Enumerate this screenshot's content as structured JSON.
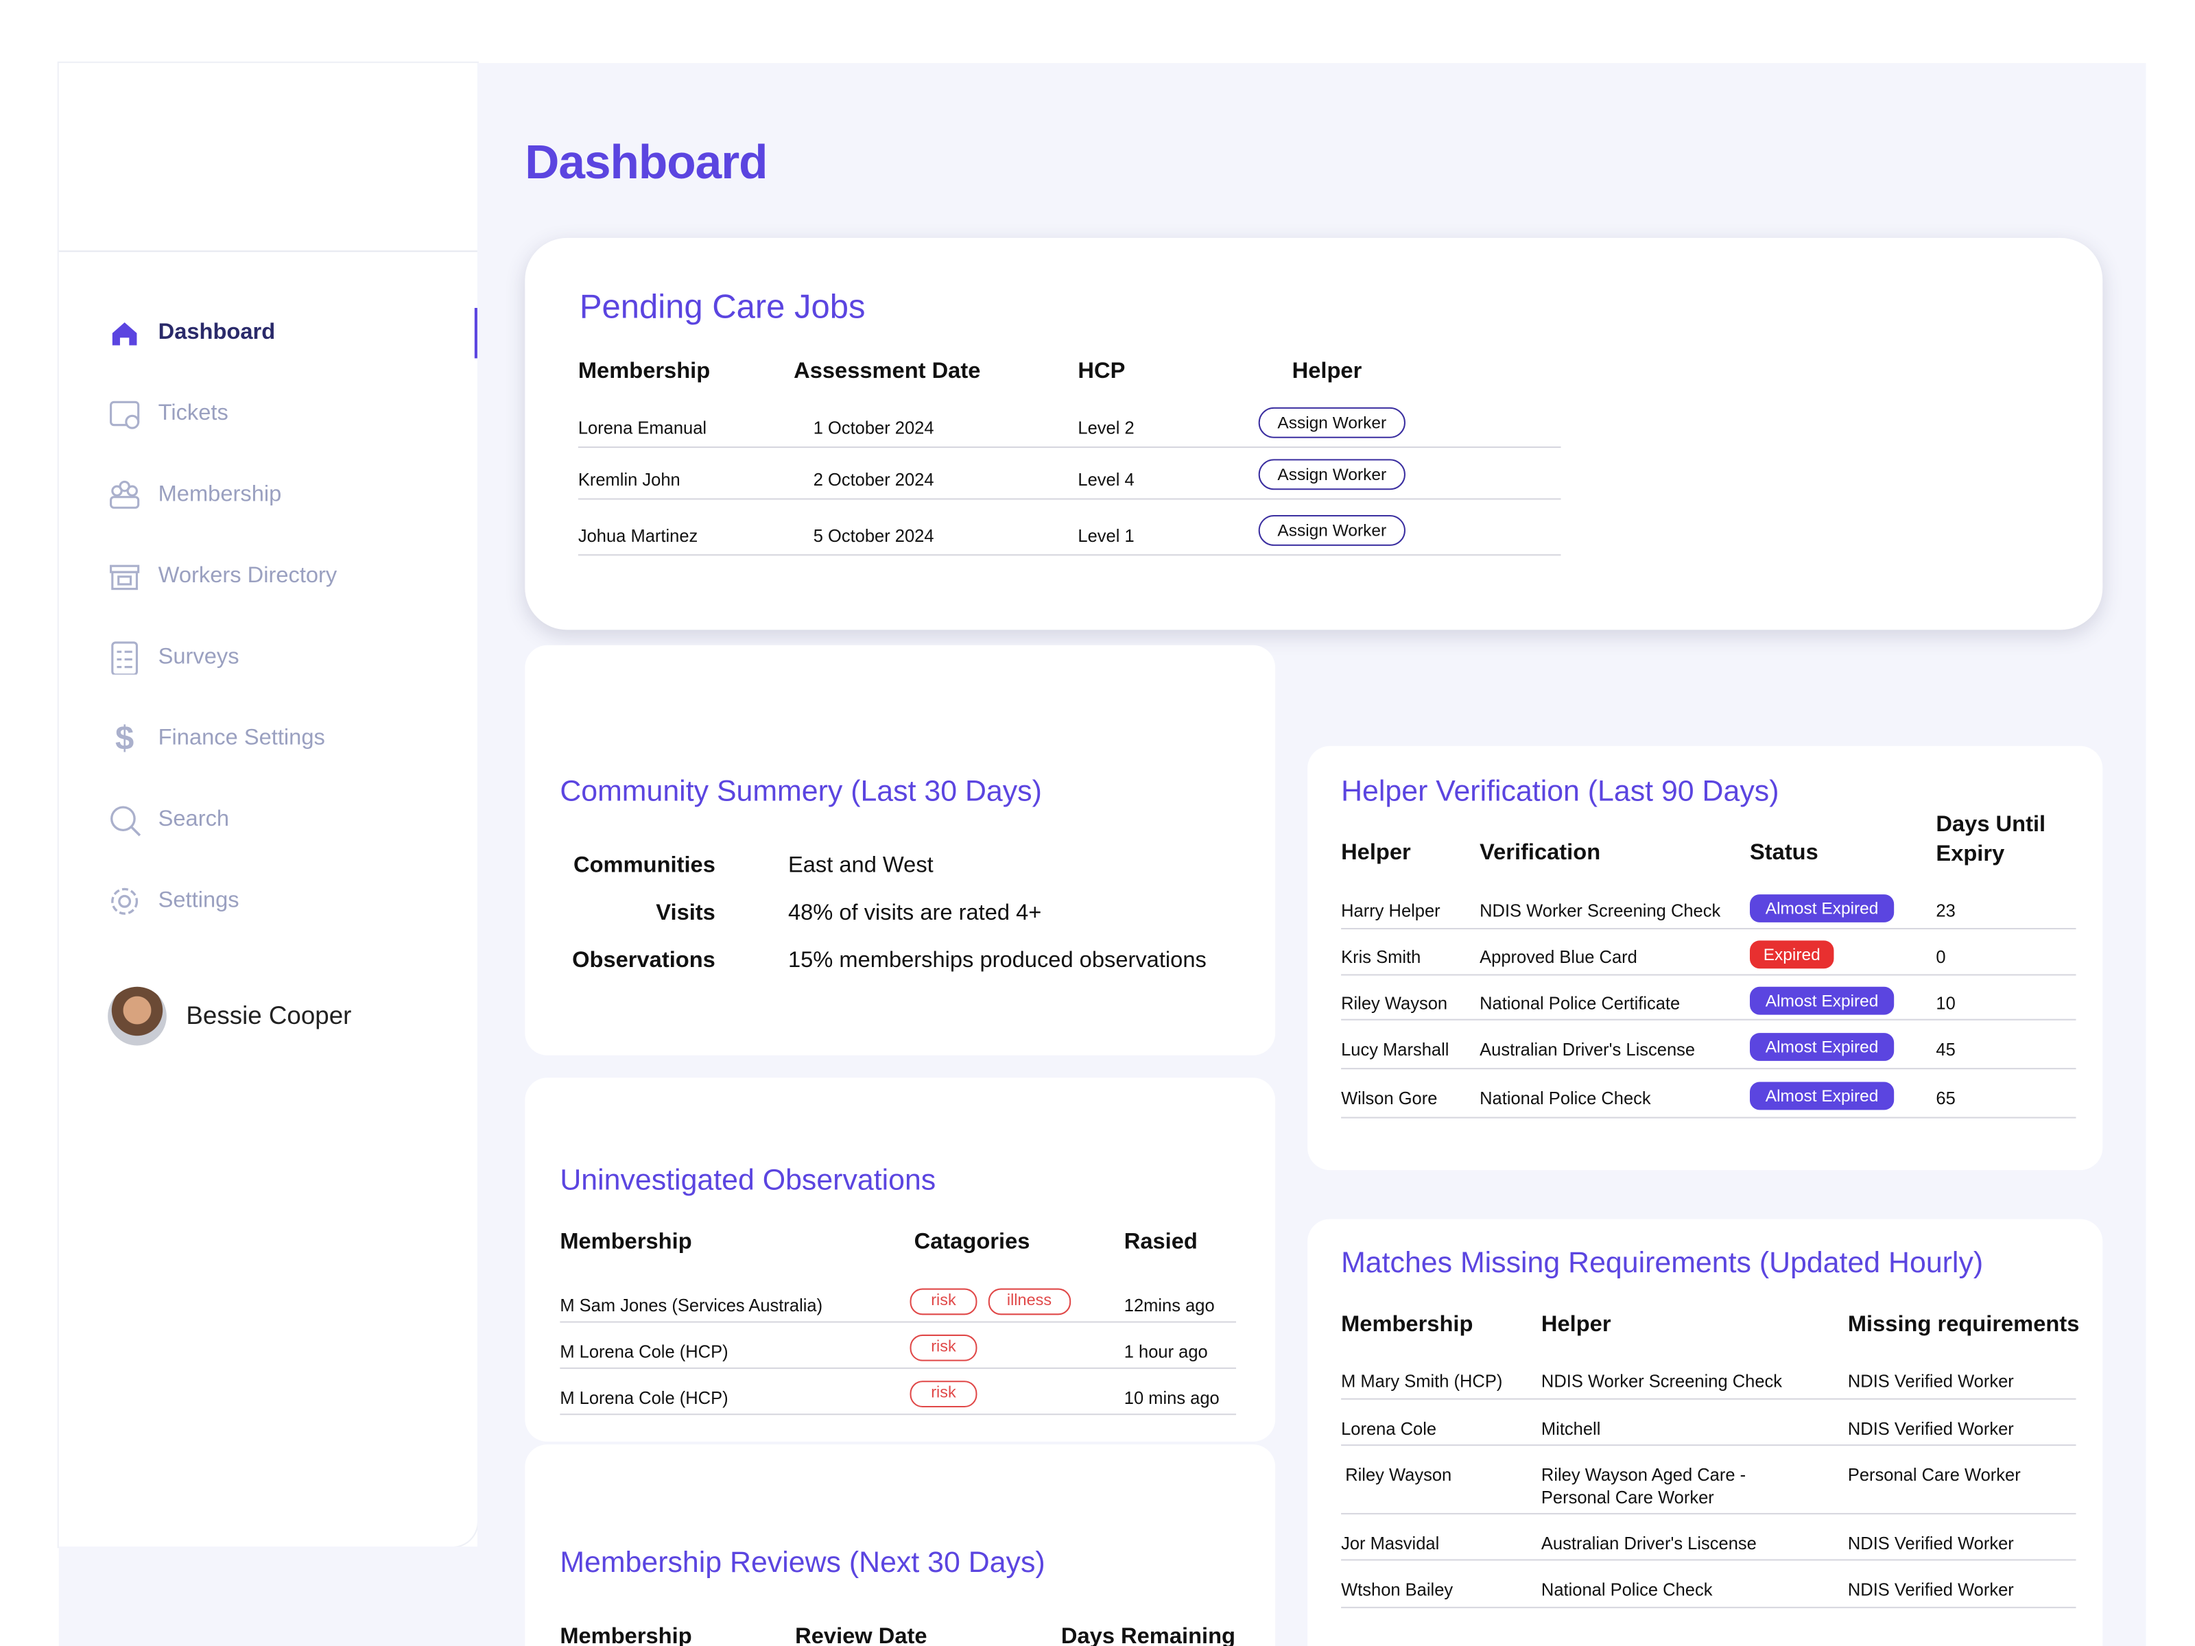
{
  "sidebar": {
    "nav": [
      "Dashboard",
      "Tickets",
      "Membership",
      "Workers Directory",
      "Surveys",
      "Finance Settings",
      "Search",
      "Settings"
    ],
    "user": "Bessie Cooper"
  },
  "page_title": "Dashboard",
  "pending_care_jobs": {
    "title": "Pending Care Jobs",
    "columns": [
      "Membership",
      "Assessment Date",
      "HCP",
      "Helper"
    ],
    "rows": [
      [
        "Lorena Emanual",
        "1 October 2024",
        "Level 2",
        "Assign Worker"
      ],
      [
        "Kremlin John",
        "2 October 2024",
        "Level 4",
        "Assign Worker"
      ],
      [
        "Johua Martinez",
        "5 October 2024",
        "Level 1",
        "Assign Worker"
      ]
    ]
  },
  "community_summary": {
    "title": "Community Summery (Last 30 Days)",
    "rows": [
      [
        "Communities",
        "East and West"
      ],
      [
        "Visits",
        "48% of visits are rated 4+"
      ],
      [
        "Observations",
        "15% memberships produced observations"
      ]
    ]
  },
  "uninvestigated_observations": {
    "title": "Uninvestigated Observations",
    "columns": [
      "Membership",
      "Catagories",
      "Rasied"
    ],
    "rows": [
      {
        "membership": "M Sam Jones (Services Australia)",
        "categories": [
          "risk",
          "illness"
        ],
        "raised": "12mins ago"
      },
      {
        "membership": "M Lorena Cole (HCP)",
        "categories": [
          "risk"
        ],
        "raised": "1 hour ago"
      },
      {
        "membership": "M Lorena Cole (HCP)",
        "categories": [
          "risk"
        ],
        "raised": "10 mins ago"
      }
    ]
  },
  "membership_reviews": {
    "title": "Membership Reviews (Next 30 Days)",
    "columns": [
      "Membership",
      "Review Date",
      "Days Remaining"
    ]
  },
  "helper_verification": {
    "title": "Helper Verification (Last 90 Days)",
    "columns": [
      "Helper",
      "Verification",
      "Status",
      "Days Until Expiry"
    ],
    "rows": [
      [
        "Harry Helper",
        "NDIS Worker Screening Check",
        "Almost Expired",
        23
      ],
      [
        "Kris Smith",
        "Approved Blue Card",
        "Expired",
        0
      ],
      [
        "Riley Wayson",
        "National Police Certificate",
        "Almost Expired",
        10
      ],
      [
        "Lucy Marshall",
        "Australian Driver's Liscense",
        "Almost Expired",
        45
      ],
      [
        "Wilson Gore",
        "National Police Check",
        "Almost Expired",
        65
      ]
    ]
  },
  "matches_missing_requirements": {
    "title": "Matches Missing Requirements (Updated Hourly)",
    "columns": [
      "Membership",
      "Helper",
      "Missing requirements"
    ],
    "rows": [
      [
        "M Mary Smith (HCP)",
        "NDIS Worker Screening Check",
        "NDIS Verified Worker"
      ],
      [
        "Lorena Cole",
        "Mitchell",
        "NDIS Verified Worker"
      ],
      [
        "Riley Wayson",
        "Riley Wayson Aged Care - Personal Care Worker",
        "Personal Care Worker"
      ],
      [
        "Jor Masvidal",
        "Australian Driver's Liscense",
        "NDIS Verified Worker"
      ],
      [
        "Wtshon Bailey",
        "National Police Check",
        "NDIS Verified Worker"
      ]
    ]
  }
}
